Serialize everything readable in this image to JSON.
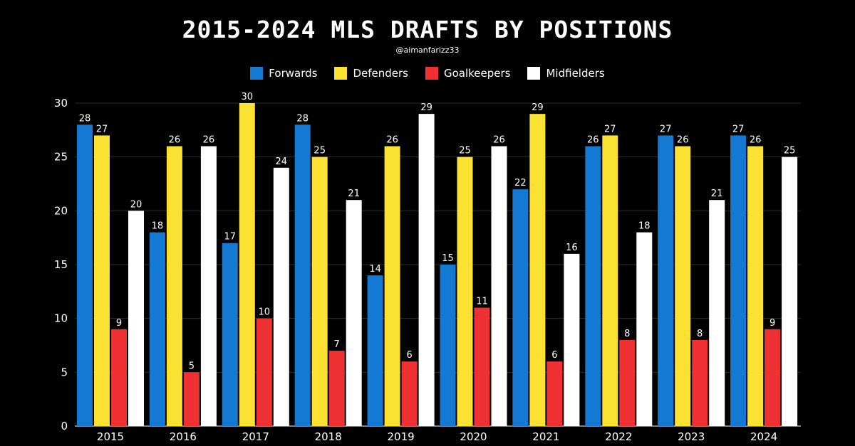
{
  "title": "2015-2024 MLS DRAFTS BY POSITIONS",
  "subtitle": "@aimanfarizz33",
  "chart_data": {
    "type": "bar",
    "categories": [
      "2015",
      "2016",
      "2017",
      "2018",
      "2019",
      "2020",
      "2021",
      "2022",
      "2023",
      "2024"
    ],
    "series": [
      {
        "name": "Forwards",
        "color": "#1479d2",
        "values": [
          28,
          18,
          17,
          28,
          14,
          15,
          22,
          26,
          27,
          27
        ]
      },
      {
        "name": "Defenders",
        "color": "#fbe232",
        "values": [
          27,
          26,
          30,
          25,
          26,
          25,
          29,
          27,
          26,
          26
        ]
      },
      {
        "name": "Goalkeepers",
        "color": "#f03134",
        "values": [
          9,
          5,
          10,
          7,
          6,
          11,
          6,
          8,
          8,
          9
        ]
      },
      {
        "name": "Midfielders",
        "color": "#ffffff",
        "values": [
          20,
          26,
          24,
          21,
          29,
          26,
          16,
          18,
          21,
          25
        ]
      }
    ],
    "yticks": [
      0,
      5,
      10,
      15,
      20,
      25,
      30
    ],
    "ylim": [
      0,
      30
    ],
    "grid": true,
    "legend_position": "top-center"
  }
}
